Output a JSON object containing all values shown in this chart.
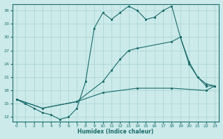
{
  "xlabel": "Humidex (Indice chaleur)",
  "bg_color": "#cceaea",
  "grid_color": "#b0d8d8",
  "line_color": "#1a6b6b",
  "xlim": [
    -0.5,
    23.5
  ],
  "ylim": [
    11,
    37.5
  ],
  "yticks": [
    12,
    15,
    18,
    21,
    24,
    27,
    30,
    33,
    36
  ],
  "xticks": [
    0,
    1,
    2,
    3,
    4,
    5,
    6,
    7,
    8,
    9,
    10,
    11,
    12,
    13,
    14,
    15,
    16,
    17,
    18,
    19,
    20,
    21,
    22,
    23
  ],
  "line1_x": [
    0,
    1,
    2,
    3,
    4,
    5,
    6,
    7,
    8,
    9,
    10,
    11,
    12,
    13,
    14,
    15,
    16,
    17,
    18,
    19,
    20,
    21,
    22,
    23
  ],
  "line1_y": [
    16,
    15,
    14,
    13,
    12.5,
    11.5,
    12,
    14,
    20,
    32,
    35.5,
    34,
    35.5,
    37,
    36,
    34,
    34.5,
    36,
    37,
    30,
    24,
    21,
    19,
    19
  ],
  "line2_x": [
    0,
    3,
    7,
    10,
    11,
    12,
    13,
    14,
    18,
    19,
    20,
    21,
    22,
    23
  ],
  "line2_y": [
    16,
    14,
    15.5,
    20,
    22.5,
    25,
    27,
    27.5,
    29,
    30,
    24.5,
    21,
    19.5,
    19
  ],
  "line3_x": [
    0,
    3,
    7,
    10,
    14,
    18,
    22,
    23
  ],
  "line3_y": [
    16,
    14,
    15.5,
    17.5,
    18.5,
    18.5,
    18,
    19
  ]
}
